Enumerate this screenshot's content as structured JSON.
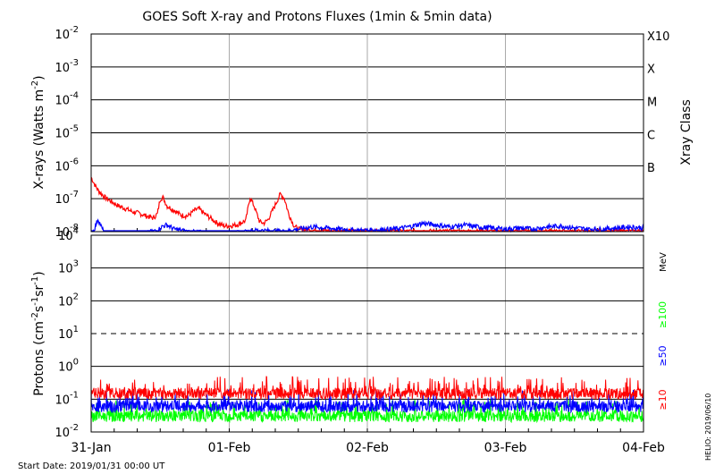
{
  "chart_data": [
    {
      "type": "line",
      "title": "GOES Soft X-ray and Protons Fluxes   (1min & 5min data)",
      "ylabel": "X-rays (Watts m^-2)",
      "ylabel_right": "Xray Class",
      "yscale": "log",
      "ylim": [
        1e-08,
        0.01
      ],
      "ytick_labels": [
        {
          "base": "10",
          "exp": "-2"
        },
        {
          "base": "10",
          "exp": "-3"
        },
        {
          "base": "10",
          "exp": "-4"
        },
        {
          "base": "10",
          "exp": "-5"
        },
        {
          "base": "10",
          "exp": "-6"
        },
        {
          "base": "10",
          "exp": "-7"
        },
        {
          "base": "10",
          "exp": "-8"
        }
      ],
      "xray_classes": [
        {
          "label": "X10",
          "value": 0.001
        },
        {
          "label": "X",
          "value": 0.0001
        },
        {
          "label": "M",
          "value": 1e-05
        },
        {
          "label": "C",
          "value": 1e-06
        },
        {
          "label": "B",
          "value": 1e-07
        }
      ],
      "grid": true,
      "x_days": [
        "31-Jan",
        "01-Feb",
        "02-Feb",
        "03-Feb",
        "04-Feb"
      ],
      "series": [
        {
          "color": "#ff0000",
          "points": [
            [
              0.0,
              4.5e-07
            ],
            [
              0.02,
              3e-07
            ],
            [
              0.05,
              1.8e-07
            ],
            [
              0.1,
              1.1e-07
            ],
            [
              0.15,
              8e-08
            ],
            [
              0.2,
              6e-08
            ],
            [
              0.25,
              5e-08
            ],
            [
              0.3,
              4e-08
            ],
            [
              0.35,
              3.6e-08
            ],
            [
              0.4,
              3e-08
            ],
            [
              0.45,
              2.6e-08
            ],
            [
              0.48,
              3.5e-08
            ],
            [
              0.5,
              1e-07
            ],
            [
              0.52,
              1.1e-07
            ],
            [
              0.55,
              6e-08
            ],
            [
              0.6,
              4.5e-08
            ],
            [
              0.65,
              3.2e-08
            ],
            [
              0.7,
              3e-08
            ],
            [
              0.75,
              4.5e-08
            ],
            [
              0.78,
              5e-08
            ],
            [
              0.82,
              3.5e-08
            ],
            [
              0.87,
              2.5e-08
            ],
            [
              0.9,
              2e-08
            ],
            [
              0.93,
              1.7e-08
            ],
            [
              0.96,
              1.5e-08
            ],
            [
              1.0,
              1.5e-08
            ],
            [
              1.05,
              1.6e-08
            ],
            [
              1.08,
              1.8e-08
            ],
            [
              1.12,
              2.2e-08
            ],
            [
              1.15,
              1.1e-07
            ],
            [
              1.18,
              6e-08
            ],
            [
              1.22,
              2e-08
            ],
            [
              1.25,
              1.8e-08
            ],
            [
              1.28,
              2.3e-08
            ],
            [
              1.32,
              5e-08
            ],
            [
              1.37,
              1.4e-07
            ],
            [
              1.4,
              1e-07
            ],
            [
              1.43,
              3.5e-08
            ],
            [
              1.47,
              1.5e-08
            ],
            [
              1.5,
              1.2e-08
            ],
            [
              1.6,
              1.1e-08
            ],
            [
              1.7,
              1.05e-08
            ],
            [
              1.8,
              1e-08
            ],
            [
              1.9,
              1.02e-08
            ],
            [
              2.0,
              1e-08
            ],
            [
              2.2,
              1e-08
            ],
            [
              2.4,
              1.03e-08
            ],
            [
              2.6,
              1e-08
            ],
            [
              2.8,
              1.02e-08
            ],
            [
              3.0,
              1e-08
            ],
            [
              3.2,
              1.01e-08
            ],
            [
              3.4,
              1e-08
            ],
            [
              3.6,
              1e-08
            ],
            [
              3.8,
              1.02e-08
            ],
            [
              4.0,
              1e-08
            ]
          ]
        },
        {
          "color": "#0000ff",
          "points": [
            [
              0.0,
              9e-09
            ],
            [
              0.02,
              1.1e-08
            ],
            [
              0.05,
              2.5e-08
            ],
            [
              0.08,
              1.2e-08
            ],
            [
              0.1,
              9e-09
            ],
            [
              0.2,
              8.5e-09
            ],
            [
              0.3,
              8.5e-09
            ],
            [
              0.4,
              9e-09
            ],
            [
              0.48,
              1.1e-08
            ],
            [
              0.52,
              1.5e-08
            ],
            [
              0.55,
              1.6e-08
            ],
            [
              0.6,
              1.2e-08
            ],
            [
              0.7,
              1e-08
            ],
            [
              0.8,
              9.5e-09
            ],
            [
              0.9,
              9e-09
            ],
            [
              1.0,
              9e-09
            ],
            [
              1.1,
              9.5e-09
            ],
            [
              1.2,
              1.1e-08
            ],
            [
              1.3,
              1.05e-08
            ],
            [
              1.4,
              1e-08
            ],
            [
              1.5,
              1.2e-08
            ],
            [
              1.6,
              1.4e-08
            ],
            [
              1.7,
              1.3e-08
            ],
            [
              1.8,
              1.2e-08
            ],
            [
              1.9,
              1.1e-08
            ],
            [
              2.0,
              1.1e-08
            ],
            [
              2.1,
              1.15e-08
            ],
            [
              2.2,
              1.2e-08
            ],
            [
              2.3,
              1.4e-08
            ],
            [
              2.4,
              1.8e-08
            ],
            [
              2.5,
              1.6e-08
            ],
            [
              2.6,
              1.4e-08
            ],
            [
              2.7,
              1.6e-08
            ],
            [
              2.8,
              1.4e-08
            ],
            [
              2.9,
              1.3e-08
            ],
            [
              3.0,
              1.2e-08
            ],
            [
              3.1,
              1.3e-08
            ],
            [
              3.2,
              1.2e-08
            ],
            [
              3.3,
              1.4e-08
            ],
            [
              3.4,
              1.5e-08
            ],
            [
              3.5,
              1.3e-08
            ],
            [
              3.6,
              1.2e-08
            ],
            [
              3.7,
              1.2e-08
            ],
            [
              3.8,
              1.3e-08
            ],
            [
              3.9,
              1.4e-08
            ],
            [
              4.0,
              1.3e-08
            ]
          ]
        }
      ]
    },
    {
      "type": "line",
      "ylabel": "Protons (cm^-2 s^-1 sr^-1)",
      "yscale": "log",
      "ylim": [
        0.01,
        10000.0
      ],
      "ytick_labels": [
        {
          "base": "10",
          "exp": "4"
        },
        {
          "base": "10",
          "exp": "3"
        },
        {
          "base": "10",
          "exp": "2"
        },
        {
          "base": "10",
          "exp": "1"
        },
        {
          "base": "10",
          "exp": "0"
        },
        {
          "base": "10",
          "exp": "-1"
        },
        {
          "base": "10",
          "exp": "-2"
        }
      ],
      "dashed_threshold": 10,
      "energy_unit": "MeV",
      "energy_labels": [
        {
          "label": "≥100",
          "color": "#00ff00"
        },
        {
          "label": "≥50",
          "color": "#0000ff"
        },
        {
          "label": "≥10",
          "color": "#ff0000"
        }
      ],
      "x_days": [
        "31-Jan",
        "01-Feb",
        "02-Feb",
        "03-Feb",
        "04-Feb"
      ],
      "series": [
        {
          "color": "#ff0000",
          "base": 0.15,
          "spread": 0.35
        },
        {
          "color": "#0000ff",
          "base": 0.06,
          "spread": 0.35
        },
        {
          "color": "#00ff00",
          "base": 0.03,
          "spread": 0.35
        }
      ]
    }
  ],
  "footer": {
    "start_date": "Start Date: 2019/01/31 00:00 UT",
    "credit": "HELIO: 2019/06/10"
  }
}
